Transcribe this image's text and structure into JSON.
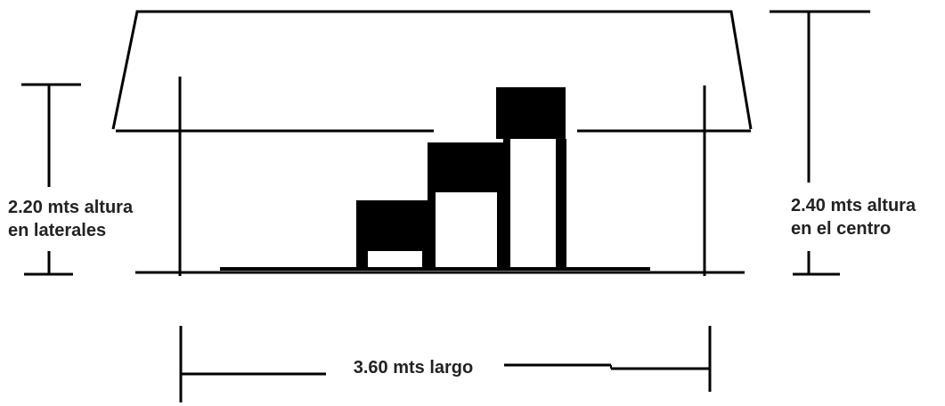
{
  "dimensions": {
    "side_height": {
      "line1": "2.20 mts altura",
      "line2": "en laterales"
    },
    "center_height": {
      "line1": "2.40 mts altura",
      "line2": "en el centro"
    },
    "length": {
      "text": "3.60 mts largo"
    }
  },
  "colors": {
    "ink": "#000000",
    "text": "#222222",
    "background": "#ffffff"
  }
}
